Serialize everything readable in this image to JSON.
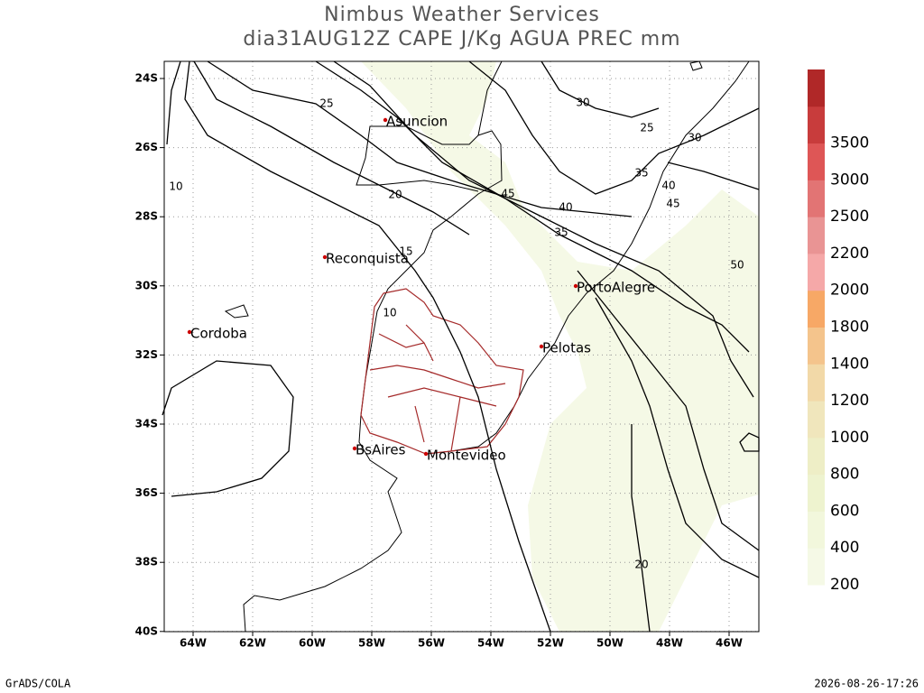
{
  "header": {
    "title": "Nimbus Weather Services",
    "subtitle": "dia31AUG12Z CAPE J/Kg AGUA PREC mm"
  },
  "map": {
    "lat_labels": [
      "24S",
      "26S",
      "28S",
      "30S",
      "32S",
      "34S",
      "36S",
      "38S",
      "40S"
    ],
    "lon_labels": [
      "64W",
      "62W",
      "60W",
      "58W",
      "56W",
      "54W",
      "52W",
      "50W",
      "48W",
      "46W"
    ],
    "cities": [
      "Asuncion",
      "Reconquista",
      "Cordoba",
      "BsAires",
      "Montevideo",
      "PortoAlegre",
      "Pelotas"
    ],
    "contour_labels": [
      25,
      20,
      15,
      10,
      10,
      45,
      40,
      35,
      30,
      25,
      30,
      35,
      40,
      45,
      50,
      20
    ]
  },
  "colorbar": {
    "labels": [
      200,
      400,
      600,
      800,
      1000,
      1200,
      1400,
      1800,
      2000,
      2200,
      2500,
      3000,
      3500
    ],
    "colors": [
      "#f5f9e6",
      "#f2f7dc",
      "#eef3cf",
      "#eeeec6",
      "#f0e6bc",
      "#f2d9a8",
      "#f4c48c",
      "#f7a866",
      "#f5a8a8",
      "#e99494",
      "#e27474",
      "#de5656",
      "#c83c3c",
      "#b02828"
    ]
  },
  "footer": {
    "left": "GrADS/COLA",
    "right": "2026-08-26-17:26"
  }
}
